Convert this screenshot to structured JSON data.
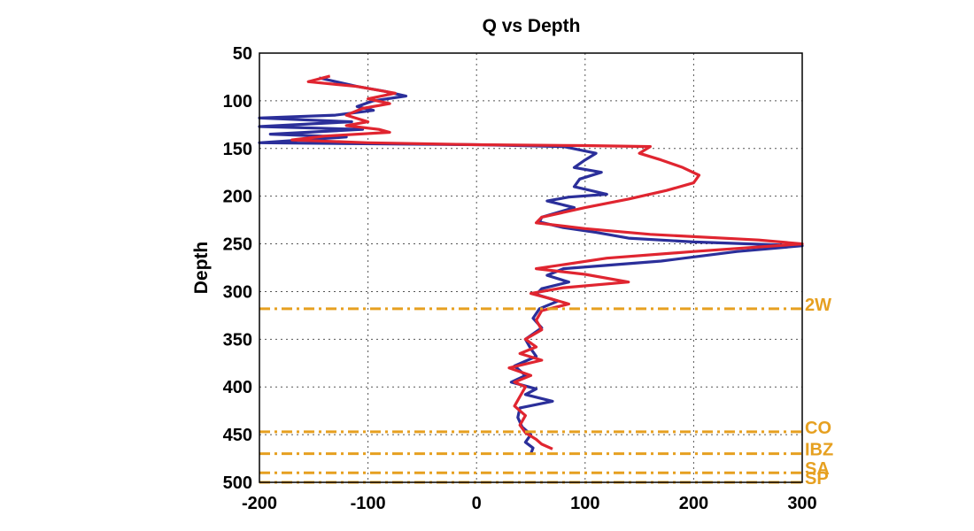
{
  "chart_data": {
    "type": "line",
    "title": "Q vs Depth",
    "xlabel": "",
    "ylabel": "Depth",
    "xlim": [
      -200,
      300
    ],
    "ylim": [
      50,
      500
    ],
    "y_reversed": true,
    "grid": true,
    "x_ticks": [
      -200,
      -100,
      0,
      100,
      200,
      300
    ],
    "y_ticks": [
      50,
      100,
      150,
      200,
      250,
      300,
      350,
      400,
      450,
      500
    ],
    "series": [
      {
        "color": "#2b2f9a",
        "points": [
          [
            -145,
            76
          ],
          [
            -110,
            85
          ],
          [
            -85,
            90
          ],
          [
            -65,
            95
          ],
          [
            -95,
            100
          ],
          [
            -110,
            106
          ],
          [
            -95,
            110
          ],
          [
            -130,
            115
          ],
          [
            -200,
            118
          ],
          [
            -115,
            122
          ],
          [
            -200,
            127
          ],
          [
            -105,
            130
          ],
          [
            -190,
            135
          ],
          [
            -120,
            138
          ],
          [
            -200,
            144
          ],
          [
            0,
            146
          ],
          [
            40,
            147
          ],
          [
            80,
            148
          ],
          [
            110,
            155
          ],
          [
            100,
            162
          ],
          [
            90,
            170
          ],
          [
            115,
            175
          ],
          [
            95,
            182
          ],
          [
            90,
            190
          ],
          [
            120,
            198
          ],
          [
            85,
            201
          ],
          [
            65,
            205
          ],
          [
            90,
            212
          ],
          [
            60,
            222
          ],
          [
            58,
            227
          ],
          [
            80,
            233
          ],
          [
            110,
            238
          ],
          [
            140,
            244
          ],
          [
            200,
            248
          ],
          [
            300,
            252
          ],
          [
            240,
            258
          ],
          [
            170,
            268
          ],
          [
            80,
            276
          ],
          [
            65,
            283
          ],
          [
            85,
            290
          ],
          [
            60,
            297
          ],
          [
            55,
            303
          ],
          [
            75,
            310
          ],
          [
            58,
            318
          ],
          [
            52,
            328
          ],
          [
            60,
            338
          ],
          [
            45,
            350
          ],
          [
            50,
            360
          ],
          [
            55,
            368
          ],
          [
            35,
            378
          ],
          [
            45,
            388
          ],
          [
            32,
            395
          ],
          [
            55,
            402
          ],
          [
            45,
            408
          ],
          [
            70,
            415
          ],
          [
            40,
            422
          ],
          [
            38,
            432
          ],
          [
            42,
            442
          ],
          [
            50,
            450
          ],
          [
            45,
            458
          ],
          [
            52,
            464
          ],
          [
            50,
            470
          ]
        ]
      },
      {
        "color": "#e02530",
        "points": [
          [
            -135,
            74
          ],
          [
            -155,
            80
          ],
          [
            -110,
            85
          ],
          [
            -75,
            92
          ],
          [
            -100,
            98
          ],
          [
            -80,
            103
          ],
          [
            -105,
            108
          ],
          [
            -120,
            115
          ],
          [
            -100,
            122
          ],
          [
            -120,
            126
          ],
          [
            -90,
            130
          ],
          [
            -80,
            133
          ],
          [
            -140,
            137
          ],
          [
            -170,
            141
          ],
          [
            -100,
            144
          ],
          [
            0,
            146
          ],
          [
            100,
            147
          ],
          [
            160,
            148
          ],
          [
            150,
            155
          ],
          [
            170,
            162
          ],
          [
            190,
            170
          ],
          [
            205,
            178
          ],
          [
            200,
            186
          ],
          [
            175,
            194
          ],
          [
            140,
            203
          ],
          [
            100,
            212
          ],
          [
            60,
            222
          ],
          [
            55,
            228
          ],
          [
            100,
            234
          ],
          [
            160,
            240
          ],
          [
            260,
            246
          ],
          [
            300,
            250
          ],
          [
            200,
            258
          ],
          [
            120,
            265
          ],
          [
            55,
            276
          ],
          [
            100,
            282
          ],
          [
            140,
            290
          ],
          [
            80,
            296
          ],
          [
            50,
            302
          ],
          [
            70,
            308
          ],
          [
            85,
            313
          ],
          [
            60,
            320
          ],
          [
            55,
            330
          ],
          [
            60,
            340
          ],
          [
            45,
            350
          ],
          [
            55,
            358
          ],
          [
            40,
            365
          ],
          [
            60,
            372
          ],
          [
            30,
            380
          ],
          [
            50,
            388
          ],
          [
            35,
            395
          ],
          [
            45,
            400
          ],
          [
            40,
            410
          ],
          [
            35,
            420
          ],
          [
            45,
            430
          ],
          [
            40,
            440
          ],
          [
            45,
            448
          ],
          [
            55,
            455
          ],
          [
            60,
            460
          ],
          [
            70,
            465
          ]
        ]
      }
    ],
    "horizontal_markers": [
      {
        "depth": 318,
        "label": "2W",
        "color": "#e6a020"
      },
      {
        "depth": 447,
        "label": "CO",
        "color": "#e6a020"
      },
      {
        "depth": 470,
        "label": "IBZ",
        "color": "#e6a020"
      },
      {
        "depth": 490,
        "label": "SA",
        "color": "#e6a020"
      },
      {
        "depth": 500,
        "label": "SP",
        "color": "#e6a020"
      }
    ]
  }
}
